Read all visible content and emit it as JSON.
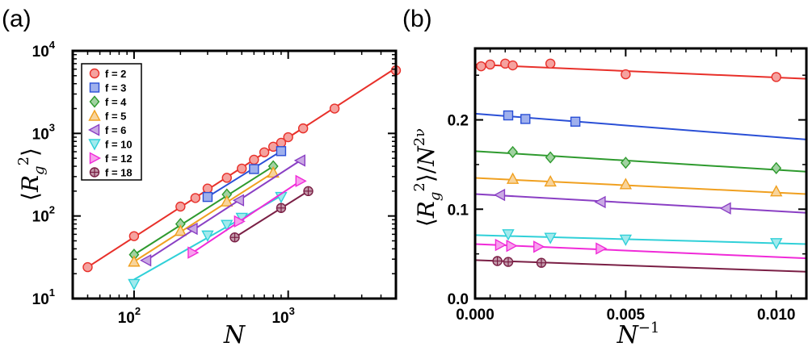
{
  "chart_data": [
    {
      "panel_label": "(a)",
      "type": "scatter",
      "xscale": "log",
      "yscale": "log",
      "xlim": [
        40,
        5000
      ],
      "ylim": [
        10,
        10000
      ],
      "xlabel": "N",
      "ylabel": "⟨Rg2⟩",
      "ylabel_parts": {
        "base": "R",
        "sub": "g",
        "sup": "2"
      },
      "xticks": [
        {
          "value": 100,
          "base": "10",
          "exp": "2"
        },
        {
          "value": 1000,
          "base": "10",
          "exp": "3"
        }
      ],
      "yticks": [
        {
          "value": 10,
          "base": "10",
          "exp": "1"
        },
        {
          "value": 100,
          "base": "10",
          "exp": "2"
        },
        {
          "value": 1000,
          "base": "10",
          "exp": "3"
        },
        {
          "value": 10000,
          "base": "10",
          "exp": "4"
        }
      ],
      "legend_position": "top-left",
      "grid": false,
      "series": [
        {
          "name": "f = 2",
          "color": "#e8302a",
          "marker": "circle",
          "x": [
            50,
            100,
            200,
            250,
            300,
            400,
            500,
            600,
            700,
            800,
            900,
            1000,
            1250,
            2000,
            5000
          ],
          "y": [
            24,
            57,
            130,
            165,
            215,
            290,
            375,
            480,
            590,
            690,
            770,
            900,
            1150,
            2000,
            5800
          ],
          "fit": {
            "x": [
              50,
              5000
            ],
            "y": [
              24,
              6200
            ]
          }
        },
        {
          "name": "f = 3",
          "color": "#2a4fd6",
          "marker": "square",
          "x": [
            300,
            600,
            900
          ],
          "y": [
            170,
            370,
            610
          ],
          "fit": {
            "x": [
              300,
              900
            ],
            "y": [
              170,
              610
            ]
          }
        },
        {
          "name": "f = 4",
          "color": "#2e9a2e",
          "marker": "diamond",
          "x": [
            100,
            200,
            400,
            800
          ],
          "y": [
            34,
            80,
            182,
            400
          ],
          "fit": {
            "x": [
              100,
              800
            ],
            "y": [
              34,
              400
            ]
          }
        },
        {
          "name": "f = 5",
          "color": "#f0a020",
          "marker": "triangle-up",
          "x": [
            100,
            200,
            400,
            800
          ],
          "y": [
            28,
            66,
            150,
            335
          ],
          "fit": {
            "x": [
              100,
              800
            ],
            "y": [
              28,
              335
            ]
          }
        },
        {
          "name": "f = 6",
          "color": "#8a3fc4",
          "marker": "triangle-left",
          "x": [
            120,
            240,
            480,
            1200
          ],
          "y": [
            29,
            70,
            155,
            470
          ],
          "fit": {
            "x": [
              120,
              1200
            ],
            "y": [
              29,
              470
            ]
          }
        },
        {
          "name": "f = 10",
          "color": "#30d0d8",
          "marker": "triangle-down",
          "x": [
            100,
            300,
            400,
            500,
            900
          ],
          "y": [
            15,
            58,
            78,
            95,
            170
          ],
          "fit": {
            "x": [
              100,
              900
            ],
            "y": [
              17,
              175
            ]
          }
        },
        {
          "name": "f = 12",
          "color": "#f02ad8",
          "marker": "triangle-right",
          "x": [
            240,
            480,
            1200
          ],
          "y": [
            36,
            86,
            265
          ],
          "fit": {
            "x": [
              240,
              1200
            ],
            "y": [
              36,
              265
            ]
          }
        },
        {
          "name": "f = 18",
          "color": "#7a1f45",
          "marker": "circle-cross",
          "x": [
            450,
            900,
            1350
          ],
          "y": [
            55,
            125,
            200
          ],
          "fit": {
            "x": [
              450,
              1350
            ],
            "y": [
              55,
              200
            ]
          }
        }
      ]
    },
    {
      "panel_label": "(b)",
      "type": "scatter",
      "xscale": "linear",
      "yscale": "linear",
      "xlim": [
        0,
        0.011
      ],
      "ylim": [
        0,
        0.28
      ],
      "xlabel": "N−1",
      "xlabel_parts": {
        "base": "N",
        "sup": "−1"
      },
      "ylabel": "⟨Rg2⟩/N2ν",
      "ylabel_parts": {
        "base": "R",
        "sub": "g",
        "sup": "2",
        "denom": "N",
        "denom_sup": "2ν"
      },
      "xticks": [
        {
          "value": 0,
          "label": "0.000"
        },
        {
          "value": 0.005,
          "label": "0.005"
        },
        {
          "value": 0.01,
          "label": "0.010"
        }
      ],
      "yticks": [
        {
          "value": 0,
          "label": "0.0"
        },
        {
          "value": 0.1,
          "label": "0.1"
        },
        {
          "value": 0.2,
          "label": "0.2"
        }
      ],
      "grid": false,
      "series": [
        {
          "name": "f = 2",
          "color": "#e8302a",
          "marker": "circle",
          "x": [
            0.0002,
            0.0005,
            0.001,
            0.00125,
            0.0025,
            0.005,
            0.01
          ],
          "y": [
            0.26,
            0.262,
            0.263,
            0.261,
            0.263,
            0.251,
            0.248
          ],
          "fit": {
            "x": [
              0,
              0.011
            ],
            "y": [
              0.262,
              0.246
            ]
          }
        },
        {
          "name": "f = 3",
          "color": "#2a4fd6",
          "marker": "square",
          "x": [
            0.0011,
            0.00167,
            0.00333
          ],
          "y": [
            0.205,
            0.201,
            0.198
          ],
          "fit": {
            "x": [
              0,
              0.011
            ],
            "y": [
              0.207,
              0.178
            ]
          }
        },
        {
          "name": "f = 4",
          "color": "#2e9a2e",
          "marker": "diamond",
          "x": [
            0.00125,
            0.0025,
            0.005,
            0.01
          ],
          "y": [
            0.164,
            0.158,
            0.152,
            0.146
          ],
          "fit": {
            "x": [
              0,
              0.011
            ],
            "y": [
              0.165,
              0.142
            ]
          }
        },
        {
          "name": "f = 5",
          "color": "#f0a020",
          "marker": "triangle-up",
          "x": [
            0.00125,
            0.0025,
            0.005,
            0.01
          ],
          "y": [
            0.134,
            0.131,
            0.128,
            0.12
          ],
          "fit": {
            "x": [
              0,
              0.011
            ],
            "y": [
              0.135,
              0.117
            ]
          }
        },
        {
          "name": "f = 6",
          "color": "#8a3fc4",
          "marker": "triangle-left",
          "x": [
            0.00083,
            0.00417,
            0.00833
          ],
          "y": [
            0.116,
            0.108,
            0.101
          ],
          "fit": {
            "x": [
              0,
              0.011
            ],
            "y": [
              0.117,
              0.096
            ]
          }
        },
        {
          "name": "f = 10",
          "color": "#30d0d8",
          "marker": "triangle-down",
          "x": [
            0.0011,
            0.0025,
            0.005,
            0.01
          ],
          "y": [
            0.072,
            0.068,
            0.066,
            0.062
          ],
          "fit": {
            "x": [
              0,
              0.011
            ],
            "y": [
              0.071,
              0.061
            ]
          }
        },
        {
          "name": "f = 12",
          "color": "#f02ad8",
          "marker": "triangle-right",
          "x": [
            0.00083,
            0.0012,
            0.0021,
            0.00417
          ],
          "y": [
            0.06,
            0.059,
            0.058,
            0.056
          ],
          "fit": {
            "x": [
              0,
              0.011
            ],
            "y": [
              0.061,
              0.045
            ]
          }
        },
        {
          "name": "f = 18",
          "color": "#7a1f45",
          "marker": "circle-cross",
          "x": [
            0.00074,
            0.0011,
            0.0022
          ],
          "y": [
            0.042,
            0.041,
            0.04
          ],
          "fit": {
            "x": [
              0,
              0.011
            ],
            "y": [
              0.043,
              0.03
            ]
          }
        }
      ]
    }
  ]
}
